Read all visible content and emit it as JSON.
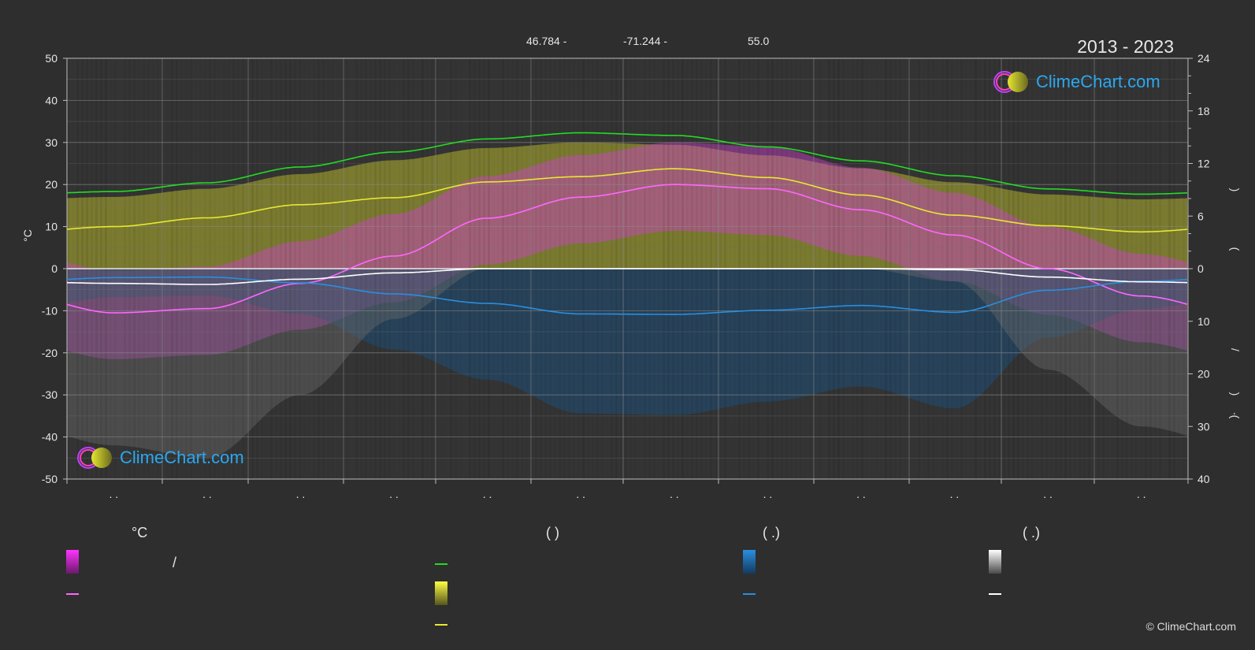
{
  "header": {
    "latitude": "46.784 -",
    "longitude": "-71.244 -",
    "elevation": "55.0",
    "years": "2013 - 2023"
  },
  "logo_text": "ClimeChart.com",
  "copyright": "© ClimeChart.com",
  "legend": {
    "col1_head": "°C",
    "col2_head": "(          )",
    "col3_head": "(    .)",
    "col4_head": "(    .)",
    "slash": "/"
  },
  "colors": {
    "daylight": "#22dd22",
    "sunshine": "#e8e830",
    "temp_avg": "#ff66ff",
    "temp_band": "#d040d0",
    "sun_band": "#b4b42e",
    "rain": "#2a8ee0",
    "snow": "#ffffff"
  },
  "chart_data": {
    "type": "line",
    "x_tick_labels": [
      ". .",
      ". .",
      ". .",
      ". .",
      ". .",
      ". .",
      ". .",
      ". .",
      ". .",
      ". .",
      ". .",
      ". ."
    ],
    "left_axis": {
      "label": "°C",
      "ylim": [
        -50,
        50
      ],
      "ticks": [
        50,
        40,
        30,
        20,
        10,
        0,
        -10,
        -20,
        -30,
        -40,
        -50
      ]
    },
    "right_axis_top": {
      "ticks": [
        24,
        18,
        12,
        6,
        0
      ],
      "range": [
        0,
        24
      ]
    },
    "right_axis_bottom": {
      "ticks": [
        10,
        20,
        30,
        40
      ],
      "range": [
        0,
        40
      ]
    },
    "right_axis_label_glyphs": [
      ")",
      "(",
      "/",
      ")",
      "(",
      "·"
    ],
    "grid": true,
    "series": [
      {
        "key": "daylight",
        "axis": "hours",
        "values": [
          8.8,
          9.8,
          11.6,
          13.3,
          14.8,
          15.5,
          15.2,
          13.9,
          12.3,
          10.6,
          9.1,
          8.5
        ]
      },
      {
        "key": "sunshine",
        "axis": "hours",
        "values": [
          4.8,
          5.8,
          7.3,
          8.1,
          9.9,
          10.5,
          11.4,
          10.4,
          8.4,
          6.1,
          4.9,
          4.2
        ]
      },
      {
        "key": "temp_avg",
        "axis": "celsius",
        "values": [
          -10.5,
          -9.5,
          -3.5,
          3.0,
          12.0,
          17.0,
          20.0,
          19.0,
          14.0,
          8.0,
          0.0,
          -6.5
        ]
      },
      {
        "key": "rain",
        "axis": "mm",
        "values": [
          1.7,
          1.6,
          2.7,
          4.8,
          6.6,
          8.6,
          8.7,
          7.9,
          7.0,
          8.3,
          4.1,
          2.4
        ]
      },
      {
        "key": "snow",
        "axis": "mm",
        "values": [
          2.8,
          3.0,
          2.0,
          0.8,
          0.0,
          0.0,
          0.0,
          0.0,
          0.0,
          0.2,
          1.6,
          2.5
        ]
      }
    ]
  }
}
